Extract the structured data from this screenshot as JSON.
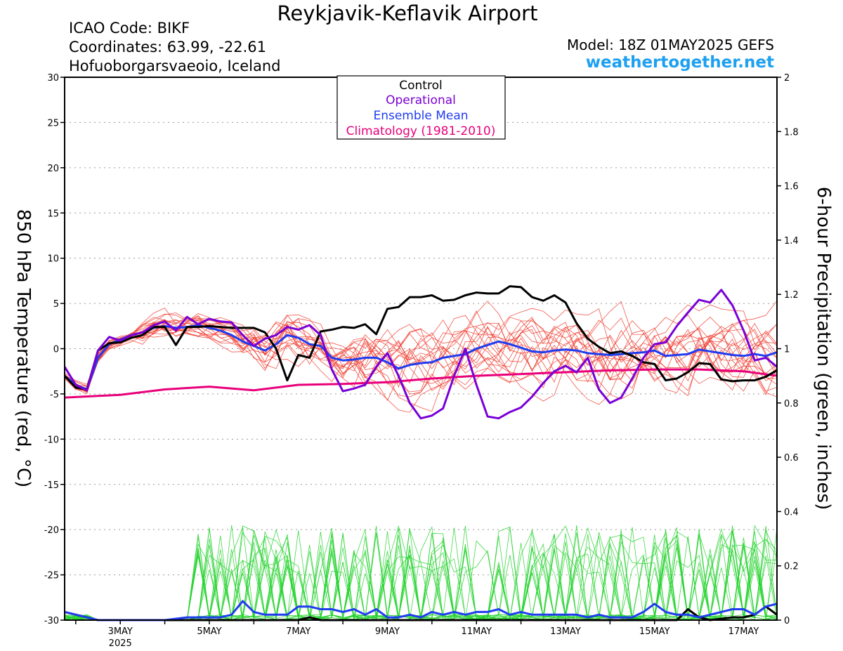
{
  "header": {
    "title": "Reykjavik-Keflavik Airport",
    "icao": "ICAO Code: BIKF",
    "coords": "Coordinates: 63.99, -22.61",
    "region": "Hofuoborgarsvaeoio, Iceland",
    "model": "Model: 18Z 01MAY2025 GEFS",
    "site": "weathertogether.net"
  },
  "colors": {
    "control": "#000000",
    "operational": "#7a00d6",
    "ensemble_mean": "#1f3cf0",
    "climatology": "#e8007a",
    "members_temp": "#f03a2e",
    "members_precip": "#22d22c",
    "grid": "#999999"
  },
  "chart_data": {
    "type": "line",
    "title": "Reykjavik-Keflavik Airport",
    "ylabel_left": "850 hPa Temperature (red, °C)",
    "ylabel_right": "6-hour Precipitation (green, inches)",
    "ylim_left": [
      -30,
      30
    ],
    "ylim_right": [
      0,
      2
    ],
    "yticks_left": [
      "30",
      "25",
      "20",
      "15",
      "10",
      "5",
      "0",
      "-5",
      "-10",
      "-15",
      "-20",
      "-25",
      "-30"
    ],
    "yticks_right": [
      "2",
      "1.8",
      "1.6",
      "1.4",
      "1.2",
      "1",
      "0.8",
      "0.6",
      "0.4",
      "0.2",
      "0"
    ],
    "xrange_days": [
      1.75,
      17.75
    ],
    "xticks": [
      {
        "day": 3,
        "label": "3MAY",
        "sub": "2025"
      },
      {
        "day": 5,
        "label": "5MAY",
        "sub": ""
      },
      {
        "day": 7,
        "label": "7MAY",
        "sub": ""
      },
      {
        "day": 9,
        "label": "9MAY",
        "sub": ""
      },
      {
        "day": 11,
        "label": "11MAY",
        "sub": ""
      },
      {
        "day": 13,
        "label": "13MAY",
        "sub": ""
      },
      {
        "day": 15,
        "label": "15MAY",
        "sub": ""
      },
      {
        "day": 17,
        "label": "17MAY",
        "sub": ""
      }
    ],
    "grid": "dotted horizontal",
    "legend_placement": "top-center",
    "legend": [
      {
        "label": "Control",
        "color": "#000000"
      },
      {
        "label": "Operational",
        "color": "#7a00d6"
      },
      {
        "label": "Ensemble Mean",
        "color": "#1f3cf0"
      },
      {
        "label": "Climatology (1981-2010)",
        "color": "#e8007a"
      }
    ],
    "temperature_series": [
      {
        "name": "Control",
        "color": "#000000",
        "points": [
          [
            1.75,
            -3
          ],
          [
            2.0,
            -4.3
          ],
          [
            2.25,
            -4.5
          ],
          [
            2.5,
            -0.2
          ],
          [
            2.75,
            0.6
          ],
          [
            3.0,
            0.7
          ],
          [
            3.25,
            1.2
          ],
          [
            3.5,
            1.5
          ],
          [
            3.75,
            2.4
          ],
          [
            4.0,
            2.4
          ],
          [
            4.25,
            0.4
          ],
          [
            4.5,
            2.4
          ],
          [
            4.75,
            2.4
          ],
          [
            5.0,
            2.5
          ],
          [
            5.25,
            2.4
          ],
          [
            5.5,
            2.3
          ],
          [
            5.75,
            2.3
          ],
          [
            6.0,
            2.3
          ],
          [
            6.25,
            1.8
          ],
          [
            6.5,
            0
          ],
          [
            6.75,
            -3.5
          ],
          [
            7.0,
            -0.7
          ],
          [
            7.25,
            -1
          ],
          [
            7.5,
            1.9
          ],
          [
            7.75,
            2.1
          ],
          [
            8.0,
            2.4
          ],
          [
            8.25,
            2.3
          ],
          [
            8.5,
            2.7
          ],
          [
            8.75,
            1.6
          ],
          [
            9.0,
            4.4
          ],
          [
            9.25,
            4.6
          ],
          [
            9.5,
            5.7
          ],
          [
            9.75,
            5.7
          ],
          [
            10.0,
            5.9
          ],
          [
            10.25,
            5.3
          ],
          [
            10.5,
            5.4
          ],
          [
            10.75,
            5.9
          ],
          [
            11.0,
            6.2
          ],
          [
            11.25,
            6.1
          ],
          [
            11.5,
            6.1
          ],
          [
            11.75,
            6.9
          ],
          [
            12.0,
            6.8
          ],
          [
            12.25,
            5.7
          ],
          [
            12.5,
            5.3
          ],
          [
            12.75,
            5.9
          ],
          [
            13.0,
            5.1
          ],
          [
            13.25,
            2.8
          ],
          [
            13.5,
            1.1
          ],
          [
            13.75,
            0.2
          ],
          [
            14.0,
            -0.5
          ],
          [
            14.25,
            -0.3
          ],
          [
            14.5,
            -0.8
          ],
          [
            14.75,
            -1.5
          ],
          [
            15.0,
            -1.7
          ],
          [
            15.25,
            -3.5
          ],
          [
            15.5,
            -3.3
          ],
          [
            15.75,
            -2.6
          ],
          [
            16.0,
            -1.6
          ],
          [
            16.25,
            -1.7
          ],
          [
            16.5,
            -3.4
          ],
          [
            16.75,
            -3.6
          ],
          [
            17.0,
            -3.5
          ],
          [
            17.25,
            -3.5
          ],
          [
            17.5,
            -3.1
          ],
          [
            17.75,
            -2.4
          ]
        ]
      },
      {
        "name": "Operational",
        "color": "#7a00d6",
        "points": [
          [
            1.75,
            -2
          ],
          [
            2.0,
            -4
          ],
          [
            2.25,
            -4.6
          ],
          [
            2.5,
            -0.2
          ],
          [
            2.75,
            1.3
          ],
          [
            3.0,
            0.9
          ],
          [
            3.25,
            1.5
          ],
          [
            3.5,
            1.8
          ],
          [
            3.75,
            2.6
          ],
          [
            4.0,
            3.0
          ],
          [
            4.25,
            2.0
          ],
          [
            4.5,
            3.5
          ],
          [
            4.75,
            2.7
          ],
          [
            5.0,
            3.3
          ],
          [
            5.25,
            3.0
          ],
          [
            5.5,
            2.9
          ],
          [
            5.75,
            1.5
          ],
          [
            6.0,
            0.3
          ],
          [
            6.25,
            1.1
          ],
          [
            6.5,
            1.5
          ],
          [
            6.75,
            2.4
          ],
          [
            7.0,
            2.1
          ],
          [
            7.25,
            2.6
          ],
          [
            7.5,
            1.5
          ],
          [
            7.75,
            -2.3
          ],
          [
            8.0,
            -4.7
          ],
          [
            8.25,
            -4.4
          ],
          [
            8.5,
            -4.0
          ],
          [
            8.75,
            -2.0
          ],
          [
            9.0,
            -0.5
          ],
          [
            9.25,
            -3
          ],
          [
            9.5,
            -6
          ],
          [
            9.75,
            -7.7
          ],
          [
            10.0,
            -7.4
          ],
          [
            10.25,
            -6.6
          ],
          [
            10.5,
            -3
          ],
          [
            10.75,
            0
          ],
          [
            11.0,
            -4
          ],
          [
            11.25,
            -7.5
          ],
          [
            11.5,
            -7.7
          ],
          [
            11.75,
            -7.0
          ],
          [
            12.0,
            -6.5
          ],
          [
            12.25,
            -5.3
          ],
          [
            12.5,
            -3.8
          ],
          [
            12.75,
            -2.5
          ],
          [
            13.0,
            -1.9
          ],
          [
            13.25,
            -2.6
          ],
          [
            13.5,
            -1
          ],
          [
            13.75,
            -4.5
          ],
          [
            14.0,
            -6
          ],
          [
            14.25,
            -5.4
          ],
          [
            14.5,
            -3.3
          ],
          [
            14.75,
            -1
          ],
          [
            15.0,
            0.5
          ],
          [
            15.25,
            0.7
          ],
          [
            15.5,
            2.5
          ],
          [
            15.75,
            4.0
          ],
          [
            16.0,
            5.4
          ],
          [
            16.25,
            5.1
          ],
          [
            16.5,
            6.5
          ],
          [
            16.75,
            4.8
          ],
          [
            17.0,
            2
          ],
          [
            17.25,
            -1.3
          ],
          [
            17.5,
            -1.0
          ],
          [
            17.75,
            -2.0
          ]
        ]
      },
      {
        "name": "Ensemble Mean",
        "color": "#1f3cf0",
        "points": [
          [
            1.75,
            -3
          ],
          [
            2.0,
            -4
          ],
          [
            2.25,
            -4.5
          ],
          [
            2.5,
            -1.0
          ],
          [
            2.75,
            0.5
          ],
          [
            3.0,
            1.0
          ],
          [
            3.25,
            1.5
          ],
          [
            3.5,
            1.8
          ],
          [
            3.75,
            2.3
          ],
          [
            4.0,
            2.5
          ],
          [
            4.25,
            2.3
          ],
          [
            4.5,
            2.4
          ],
          [
            4.75,
            2.6
          ],
          [
            5.0,
            2.3
          ],
          [
            5.25,
            2.0
          ],
          [
            5.5,
            1.5
          ],
          [
            5.75,
            0.8
          ],
          [
            6.0,
            0.3
          ],
          [
            6.25,
            -0.2
          ],
          [
            6.5,
            0.5
          ],
          [
            6.75,
            1.5
          ],
          [
            7.0,
            1.2
          ],
          [
            7.25,
            0.5
          ],
          [
            7.5,
            0.3
          ],
          [
            7.75,
            -1.0
          ],
          [
            8.0,
            -1.3
          ],
          [
            8.25,
            -1.2
          ],
          [
            8.5,
            -1.0
          ],
          [
            8.75,
            -1.0
          ],
          [
            9.0,
            -1.5
          ],
          [
            9.25,
            -2.2
          ],
          [
            9.5,
            -1.8
          ],
          [
            9.75,
            -1.6
          ],
          [
            10.0,
            -1.5
          ],
          [
            10.25,
            -1.0
          ],
          [
            10.5,
            -0.8
          ],
          [
            10.75,
            -0.6
          ],
          [
            11.0,
            0
          ],
          [
            11.25,
            0.4
          ],
          [
            11.5,
            0.8
          ],
          [
            11.75,
            0.5
          ],
          [
            12.0,
            0.1
          ],
          [
            12.25,
            -0.3
          ],
          [
            12.5,
            -0.4
          ],
          [
            12.75,
            -0.2
          ],
          [
            13.0,
            -0.1
          ],
          [
            13.25,
            -0.2
          ],
          [
            13.5,
            -0.5
          ],
          [
            13.75,
            -0.6
          ],
          [
            14.0,
            -0.7
          ],
          [
            14.25,
            -0.6
          ],
          [
            14.5,
            -0.5
          ],
          [
            14.75,
            -0.4
          ],
          [
            15.0,
            -0.2
          ],
          [
            15.25,
            -0.8
          ],
          [
            15.5,
            -0.7
          ],
          [
            15.75,
            -0.6
          ],
          [
            16.0,
            -0.1
          ],
          [
            16.25,
            -0.3
          ],
          [
            16.5,
            -0.5
          ],
          [
            16.75,
            -0.7
          ],
          [
            17.0,
            -0.8
          ],
          [
            17.25,
            -0.6
          ],
          [
            17.5,
            -0.8
          ],
          [
            17.75,
            -0.4
          ]
        ]
      },
      {
        "name": "Climatology (1981-2010)",
        "color": "#e8007a",
        "points": [
          [
            1.75,
            -5.4
          ],
          [
            3.0,
            -5.1
          ],
          [
            4.0,
            -4.5
          ],
          [
            5.0,
            -4.2
          ],
          [
            6.0,
            -4.6
          ],
          [
            7.0,
            -4.0
          ],
          [
            8.0,
            -3.9
          ],
          [
            9.0,
            -3.7
          ],
          [
            10.0,
            -3.3
          ],
          [
            11.0,
            -3.0
          ],
          [
            12.0,
            -2.8
          ],
          [
            13.0,
            -2.6
          ],
          [
            14.0,
            -2.4
          ],
          [
            15.0,
            -2.3
          ],
          [
            16.0,
            -2.3
          ],
          [
            17.0,
            -2.5
          ],
          [
            17.75,
            -3.0
          ]
        ]
      }
    ],
    "precip_series": [
      {
        "name": "Control",
        "color": "#000000",
        "points": [
          [
            1.75,
            0.03
          ],
          [
            2.25,
            0.01
          ],
          [
            2.5,
            0
          ],
          [
            7.0,
            0
          ],
          [
            7.25,
            0.01
          ],
          [
            7.5,
            0
          ],
          [
            13.0,
            0
          ],
          [
            15.5,
            0
          ],
          [
            15.75,
            0.04
          ],
          [
            16.0,
            0.01
          ],
          [
            16.25,
            0
          ],
          [
            16.75,
            0.01
          ],
          [
            17.0,
            0.01
          ],
          [
            17.25,
            0.02
          ],
          [
            17.5,
            0.05
          ],
          [
            17.75,
            0.02
          ]
        ]
      },
      {
        "name": "Ensemble Mean",
        "color": "#1f3cf0",
        "points": [
          [
            1.75,
            0.03
          ],
          [
            2.25,
            0.01
          ],
          [
            2.5,
            0
          ],
          [
            4.0,
            0
          ],
          [
            4.5,
            0.01
          ],
          [
            5.0,
            0.01
          ],
          [
            5.25,
            0.01
          ],
          [
            5.5,
            0.02
          ],
          [
            5.75,
            0.07
          ],
          [
            6.0,
            0.03
          ],
          [
            6.25,
            0.02
          ],
          [
            6.5,
            0.02
          ],
          [
            6.75,
            0.02
          ],
          [
            7.0,
            0.05
          ],
          [
            7.25,
            0.05
          ],
          [
            7.5,
            0.04
          ],
          [
            7.75,
            0.04
          ],
          [
            8.0,
            0.03
          ],
          [
            8.25,
            0.04
          ],
          [
            8.5,
            0.02
          ],
          [
            8.75,
            0.04
          ],
          [
            9.0,
            0.01
          ],
          [
            9.25,
            0.01
          ],
          [
            9.5,
            0.02
          ],
          [
            9.75,
            0.01
          ],
          [
            10.0,
            0.03
          ],
          [
            10.25,
            0.02
          ],
          [
            10.5,
            0.03
          ],
          [
            10.75,
            0.02
          ],
          [
            11.0,
            0.03
          ],
          [
            11.25,
            0.03
          ],
          [
            11.5,
            0.04
          ],
          [
            11.75,
            0.02
          ],
          [
            12.0,
            0.03
          ],
          [
            12.25,
            0.02
          ],
          [
            12.5,
            0.02
          ],
          [
            12.75,
            0.02
          ],
          [
            13.0,
            0.02
          ],
          [
            13.25,
            0.02
          ],
          [
            13.5,
            0.01
          ],
          [
            13.75,
            0.02
          ],
          [
            14.0,
            0.01
          ],
          [
            14.25,
            0.01
          ],
          [
            14.5,
            0.01
          ],
          [
            14.75,
            0.03
          ],
          [
            15.0,
            0.06
          ],
          [
            15.25,
            0.03
          ],
          [
            15.5,
            0.02
          ],
          [
            15.75,
            0.02
          ],
          [
            16.0,
            0.01
          ],
          [
            16.25,
            0.02
          ],
          [
            16.5,
            0.03
          ],
          [
            16.75,
            0.04
          ],
          [
            17.0,
            0.04
          ],
          [
            17.25,
            0.02
          ],
          [
            17.5,
            0.05
          ],
          [
            17.75,
            0.06
          ]
        ]
      }
    ]
  }
}
